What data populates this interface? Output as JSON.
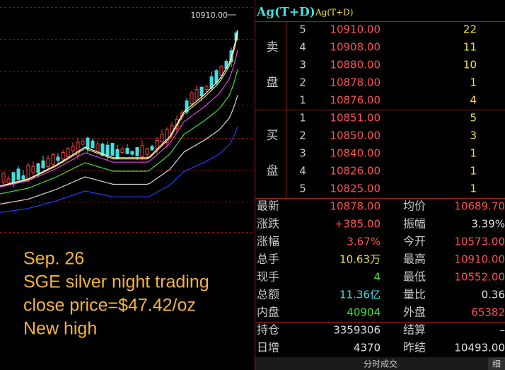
{
  "chart_label": "10910.00",
  "header": {
    "title": "Ag(T+D)",
    "subtitle": "Ag(T+D)"
  },
  "order_book": {
    "sell_label": [
      "卖",
      "盘"
    ],
    "buy_label": [
      "买",
      "盘"
    ],
    "asks": [
      {
        "level": "5",
        "price": "10910.00",
        "volume": "22"
      },
      {
        "level": "4",
        "price": "10908.00",
        "volume": "11"
      },
      {
        "level": "3",
        "price": "10880.00",
        "volume": "10"
      },
      {
        "level": "2",
        "price": "10878.00",
        "volume": "1"
      },
      {
        "level": "1",
        "price": "10876.00",
        "volume": "4"
      }
    ],
    "bids": [
      {
        "level": "1",
        "price": "10851.00",
        "volume": "5"
      },
      {
        "level": "2",
        "price": "10850.00",
        "volume": "3"
      },
      {
        "level": "3",
        "price": "10840.00",
        "volume": "1"
      },
      {
        "level": "4",
        "price": "10826.00",
        "volume": "1"
      },
      {
        "level": "5",
        "price": "10825.00",
        "volume": "1"
      }
    ]
  },
  "stats": [
    {
      "label": "最新",
      "value": "10878.00",
      "label2": "均价",
      "value2": "10689.70"
    },
    {
      "label": "涨跌",
      "value": "+385.00",
      "label2": "振幅",
      "value2": "3.39%"
    },
    {
      "label": "涨幅",
      "value": "3.67%",
      "label2": "今开",
      "value2": "10573.00"
    },
    {
      "label": "总手",
      "value": "10.63万",
      "label2": "最高",
      "value2": "10910.00"
    },
    {
      "label": "现手",
      "value": "4",
      "label2": "最低",
      "value2": "10552.00"
    },
    {
      "label": "总额",
      "value": "11.36亿",
      "label2": "量比",
      "value2": "0.36"
    },
    {
      "label": "内盘",
      "value": "40904",
      "label2": "外盘",
      "value2": "65382"
    }
  ],
  "position": [
    {
      "label": "持仓",
      "value": "3359306",
      "label2": "结算",
      "value2": "–"
    },
    {
      "label": "日增",
      "value": "4370",
      "label2": "昨结",
      "value2": "10493.00"
    }
  ],
  "footer": {
    "tab": "分时成交",
    "detail": "细"
  },
  "caption": [
    "Sep. 26",
    "SGE silver night trading",
    "close price=$47.42/oz",
    "New high"
  ]
}
